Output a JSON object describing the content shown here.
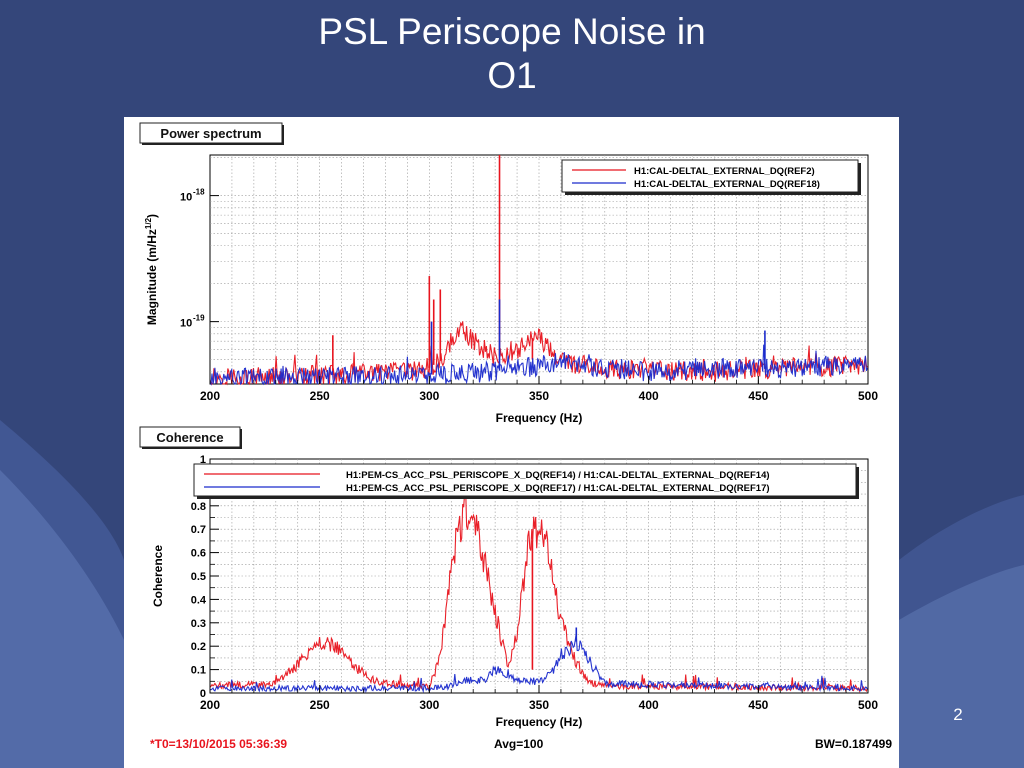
{
  "slide": {
    "title_line1": "PSL Periscope Noise in",
    "title_line2": "O1",
    "page_number": "2"
  },
  "footer": {
    "t0": "*T0=13/10/2015 05:36:39",
    "avg": "Avg=100",
    "bw": "BW=0.187499"
  },
  "chart_data": [
    {
      "type": "line",
      "title": "Power spectrum",
      "xlabel": "Frequency (Hz)",
      "ylabel": "Magnitude (m/Hz^1/2)",
      "ylabel_main": "Magnitude (m/Hz",
      "ylabel_sup": "1/2",
      "ylabel_close": ")",
      "xlim": [
        200,
        500
      ],
      "ylim": [
        3.2e-20,
        2.1e-18
      ],
      "yscale": "log",
      "xticks": [
        200,
        250,
        300,
        350,
        400,
        450,
        500
      ],
      "xtick_labels": [
        "200",
        "250",
        "300",
        "350",
        "400",
        "450",
        "500"
      ],
      "yticks": [
        1e-19,
        1e-18
      ],
      "ytick_labels": [
        {
          "base": "10",
          "exp": "-19"
        },
        {
          "base": "10",
          "exp": "-18"
        }
      ],
      "grid": true,
      "legend_position": "top-right",
      "series": [
        {
          "name": "H1:CAL-DELTAL_EXTERNAL_DQ(REF2)",
          "color": "#e8141e",
          "baseline": [
            [
              200,
              3.7e-20
            ],
            [
              220,
              3.6e-20
            ],
            [
              260,
              3.8e-20
            ],
            [
              290,
              4e-20
            ],
            [
              300,
              4.3e-20
            ],
            [
              306,
              5e-20
            ],
            [
              314,
              8.9e-20
            ],
            [
              320,
              7e-20
            ],
            [
              330,
              5.2e-20
            ],
            [
              340,
              6e-20
            ],
            [
              349,
              7.8e-20
            ],
            [
              356,
              5.6e-20
            ],
            [
              362,
              4.7e-20
            ],
            [
              370,
              4.5e-20
            ],
            [
              390,
              4.1e-20
            ],
            [
              430,
              4e-20
            ],
            [
              460,
              4.3e-20
            ],
            [
              500,
              4.5e-20
            ]
          ],
          "lines": [
            [
              256,
              7.8e-20
            ],
            [
              300,
              2.3e-19
            ],
            [
              302,
              1.5e-19
            ],
            [
              305,
              1.8e-19
            ],
            [
              332,
              2.1e-18
            ],
            [
              347,
              5e-20
            ],
            [
              453,
              4.6e-20
            ],
            [
              488,
              4.8e-20
            ]
          ]
        },
        {
          "name": "H1:CAL-DELTAL_EXTERNAL_DQ(REF18)",
          "color": "#1a2acc",
          "baseline": [
            [
              200,
              3.6e-20
            ],
            [
              250,
              3.6e-20
            ],
            [
              300,
              3.8e-20
            ],
            [
              320,
              3.9e-20
            ],
            [
              340,
              4.2e-20
            ],
            [
              355,
              4.6e-20
            ],
            [
              362,
              4.9e-20
            ],
            [
              370,
              4.5e-20
            ],
            [
              400,
              4e-20
            ],
            [
              450,
              4.2e-20
            ],
            [
              500,
              4.5e-20
            ]
          ],
          "lines": [
            [
              301,
              1e-19
            ],
            [
              332,
              1.5e-19
            ],
            [
              453,
              8.5e-20
            ]
          ]
        }
      ]
    },
    {
      "type": "line",
      "title": "Coherence",
      "xlabel": "Frequency (Hz)",
      "ylabel": "Coherence",
      "xlim": [
        200,
        500
      ],
      "ylim": [
        0,
        1
      ],
      "xticks": [
        200,
        250,
        300,
        350,
        400,
        450,
        500
      ],
      "xtick_labels": [
        "200",
        "250",
        "300",
        "350",
        "400",
        "450",
        "500"
      ],
      "yticks": [
        0,
        0.1,
        0.2,
        0.3,
        0.4,
        0.5,
        0.6,
        0.7,
        0.8,
        1
      ],
      "ytick_labels": [
        "0",
        "0.1",
        "0.2",
        "0.3",
        "0.4",
        "0.5",
        "0.6",
        "0.7",
        "0.8",
        "1"
      ],
      "grid": true,
      "legend_position": "top",
      "series": [
        {
          "name": "H1:PEM-CS_ACC_PSL_PERISCOPE_X_DQ(REF14) / H1:CAL-DELTAL_EXTERNAL_DQ(REF14)",
          "color": "#e8141e",
          "baseline": [
            [
              200,
              0.03
            ],
            [
              230,
              0.04
            ],
            [
              240,
              0.12
            ],
            [
              250,
              0.22
            ],
            [
              258,
              0.2
            ],
            [
              265,
              0.12
            ],
            [
              275,
              0.05
            ],
            [
              290,
              0.03
            ],
            [
              300,
              0.03
            ],
            [
              305,
              0.15
            ],
            [
              310,
              0.55
            ],
            [
              316,
              0.8
            ],
            [
              322,
              0.7
            ],
            [
              330,
              0.35
            ],
            [
              336,
              0.1
            ],
            [
              340,
              0.25
            ],
            [
              345,
              0.62
            ],
            [
              350,
              0.7
            ],
            [
              355,
              0.55
            ],
            [
              360,
              0.3
            ],
            [
              366,
              0.15
            ],
            [
              372,
              0.05
            ],
            [
              380,
              0.03
            ],
            [
              500,
              0.02
            ]
          ],
          "lines": [
            [
              347,
              0.1
            ]
          ]
        },
        {
          "name": "H1:PEM-CS_ACC_PSL_PERISCOPE_X_DQ(REF17) / H1:CAL-DELTAL_EXTERNAL_DQ(REF17)",
          "color": "#1a2acc",
          "baseline": [
            [
              200,
              0.02
            ],
            [
              300,
              0.02
            ],
            [
              310,
              0.03
            ],
            [
              320,
              0.06
            ],
            [
              325,
              0.05
            ],
            [
              330,
              0.1
            ],
            [
              335,
              0.08
            ],
            [
              340,
              0.05
            ],
            [
              350,
              0.05
            ],
            [
              355,
              0.08
            ],
            [
              360,
              0.15
            ],
            [
              367,
              0.22
            ],
            [
              372,
              0.15
            ],
            [
              380,
              0.04
            ],
            [
              500,
              0.02
            ]
          ],
          "lines": [
            [
              367,
              0.28
            ]
          ]
        }
      ]
    }
  ]
}
